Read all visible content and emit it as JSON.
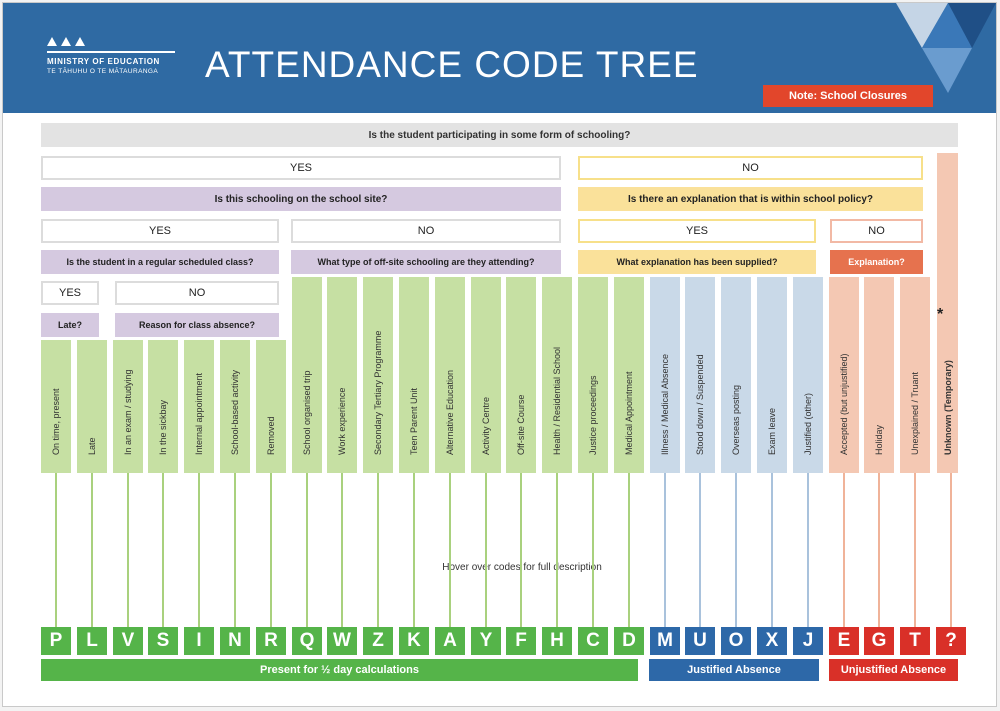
{
  "header": {
    "logo_line1": "MINISTRY OF EDUCATION",
    "logo_line2": "TE TĀHUHU O TE MĀTAURANGA",
    "title": "ATTENDANCE CODE TREE",
    "note_button": "Note: School Closures"
  },
  "tree": {
    "q1": "Is the student participating in some form of schooling?",
    "yes": "YES",
    "no": "NO",
    "q_onsite": "Is this schooling on the school site?",
    "q_policy": "Is there an explanation that is within school policy?",
    "q_class": "Is the student in a regular scheduled class?",
    "q_offsite": "What type of off-site schooling are they attending?",
    "q_explanation": "What explanation has been supplied?",
    "q_expl_short": "Explanation?",
    "q_late": "Late?",
    "q_reason": "Reason for class absence?",
    "star": "*",
    "hover_note": "Hover over codes for full description"
  },
  "columns": [
    {
      "label": "On time, present",
      "code": "P",
      "group": "green"
    },
    {
      "label": "Late",
      "code": "L",
      "group": "green"
    },
    {
      "label": "In an exam / studying",
      "code": "V",
      "group": "green"
    },
    {
      "label": "In the sickbay",
      "code": "S",
      "group": "green"
    },
    {
      "label": "Internal appointment",
      "code": "I",
      "group": "green"
    },
    {
      "label": "School-based activity",
      "code": "N",
      "group": "green"
    },
    {
      "label": "Removed",
      "code": "R",
      "group": "green"
    },
    {
      "label": "School organised trip",
      "code": "Q",
      "group": "green"
    },
    {
      "label": "Work experience",
      "code": "W",
      "group": "green"
    },
    {
      "label": "Secondary Tertiary Programme",
      "code": "Z",
      "group": "green"
    },
    {
      "label": "Teen Parent Unit",
      "code": "K",
      "group": "green"
    },
    {
      "label": "Alternative Education",
      "code": "A",
      "group": "green"
    },
    {
      "label": "Activity Centre",
      "code": "Y",
      "group": "green"
    },
    {
      "label": "Off-site Course",
      "code": "F",
      "group": "green"
    },
    {
      "label": "Health / Residential School",
      "code": "H",
      "group": "green"
    },
    {
      "label": "Justice proceedings",
      "code": "C",
      "group": "green"
    },
    {
      "label": "Medical Appointment",
      "code": "D",
      "group": "green"
    },
    {
      "label": "Illness / Medical Absence",
      "code": "M",
      "group": "blue"
    },
    {
      "label": "Stood down / Suspended",
      "code": "U",
      "group": "blue"
    },
    {
      "label": "Overseas posting",
      "code": "O",
      "group": "blue"
    },
    {
      "label": "Exam leave",
      "code": "X",
      "group": "blue"
    },
    {
      "label": "Justified (other)",
      "code": "J",
      "group": "blue"
    },
    {
      "label": "Accepted (but unjustified)",
      "code": "E",
      "group": "salmon"
    },
    {
      "label": "Holiday",
      "code": "G",
      "group": "salmon"
    },
    {
      "label": "Unexplained / Truant",
      "code": "T",
      "group": "salmon"
    },
    {
      "label": "Unknown (Temporary)",
      "code": "?",
      "group": "salmon"
    }
  ],
  "categories": {
    "present": "Present for ½ day calculations",
    "justified": "Justified Absence",
    "unjustified": "Unjustified Absence"
  },
  "colors": {
    "header_blue": "#2f6aa3",
    "green_code": "#55b449",
    "blue_code": "#2d68a8",
    "red_code": "#d93028",
    "note_orange": "#e2462b"
  }
}
